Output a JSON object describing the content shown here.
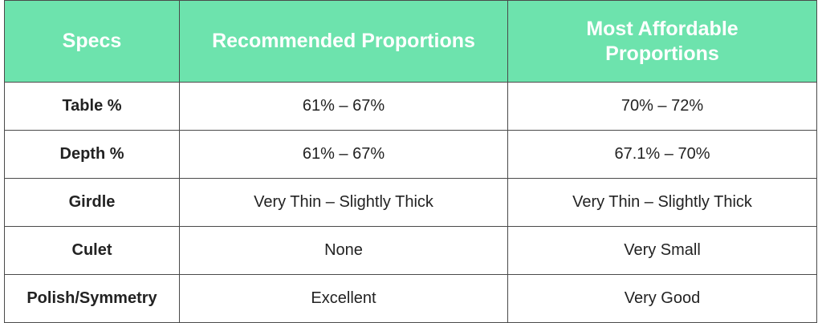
{
  "table": {
    "header": [
      "Specs",
      "Recommended Proportions",
      "Most Affordable Proportions"
    ],
    "rows": [
      [
        "Table %",
        "61% – 67%",
        "70% – 72%"
      ],
      [
        "Depth %",
        "61% – 67%",
        "67.1% – 70%"
      ],
      [
        "Girdle",
        "Very Thin – Slightly Thick",
        "Very Thin – Slightly Thick"
      ],
      [
        "Culet",
        "None",
        "Very Small"
      ],
      [
        "Polish/Symmetry",
        "Excellent",
        "Very Good"
      ]
    ]
  }
}
